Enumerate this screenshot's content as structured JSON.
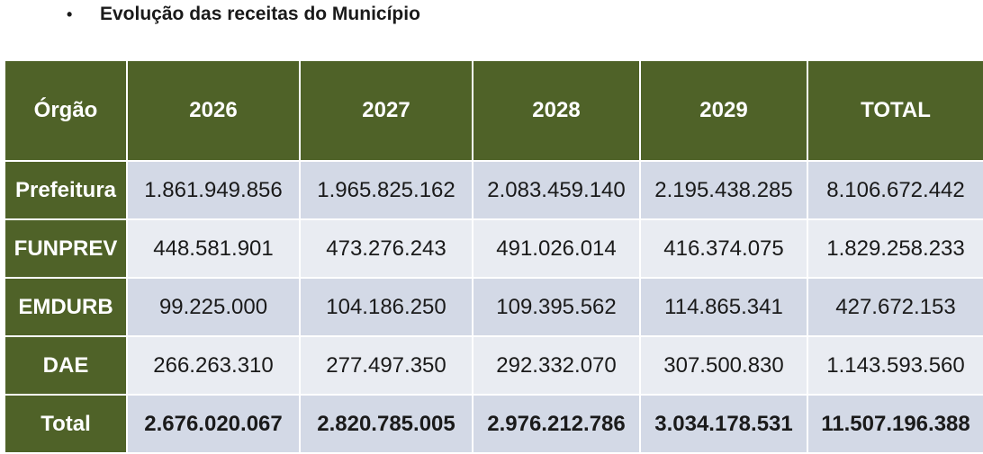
{
  "heading": {
    "bullet": "•",
    "text": "Evolução das receitas do Município"
  },
  "table": {
    "headers": [
      "Órgão",
      "2026",
      "2027",
      "2028",
      "2029",
      "TOTAL"
    ],
    "rows": [
      {
        "label": "Prefeitura",
        "values": [
          "1.861.949.856",
          "1.965.825.162",
          "2.083.459.140",
          "2.195.438.285",
          "8.106.672.442"
        ]
      },
      {
        "label": "FUNPREV",
        "values": [
          "448.581.901",
          "473.276.243",
          "491.026.014",
          "416.374.075",
          "1.829.258.233"
        ]
      },
      {
        "label": "EMDURB",
        "values": [
          "99.225.000",
          "104.186.250",
          "109.395.562",
          "114.865.341",
          "427.672.153"
        ]
      },
      {
        "label": "DAE",
        "values": [
          "266.263.310",
          "277.497.350",
          "292.332.070",
          "307.500.830",
          "1.143.593.560"
        ]
      },
      {
        "label": "Total",
        "values": [
          "2.676.020.067",
          "2.820.785.005",
          "2.976.212.786",
          "3.034.178.531",
          "11.507.196.388"
        ]
      }
    ]
  },
  "colors": {
    "header_green": "#4f6228",
    "row_dark": "#d3d9e6",
    "row_light": "#e9ecf2"
  }
}
